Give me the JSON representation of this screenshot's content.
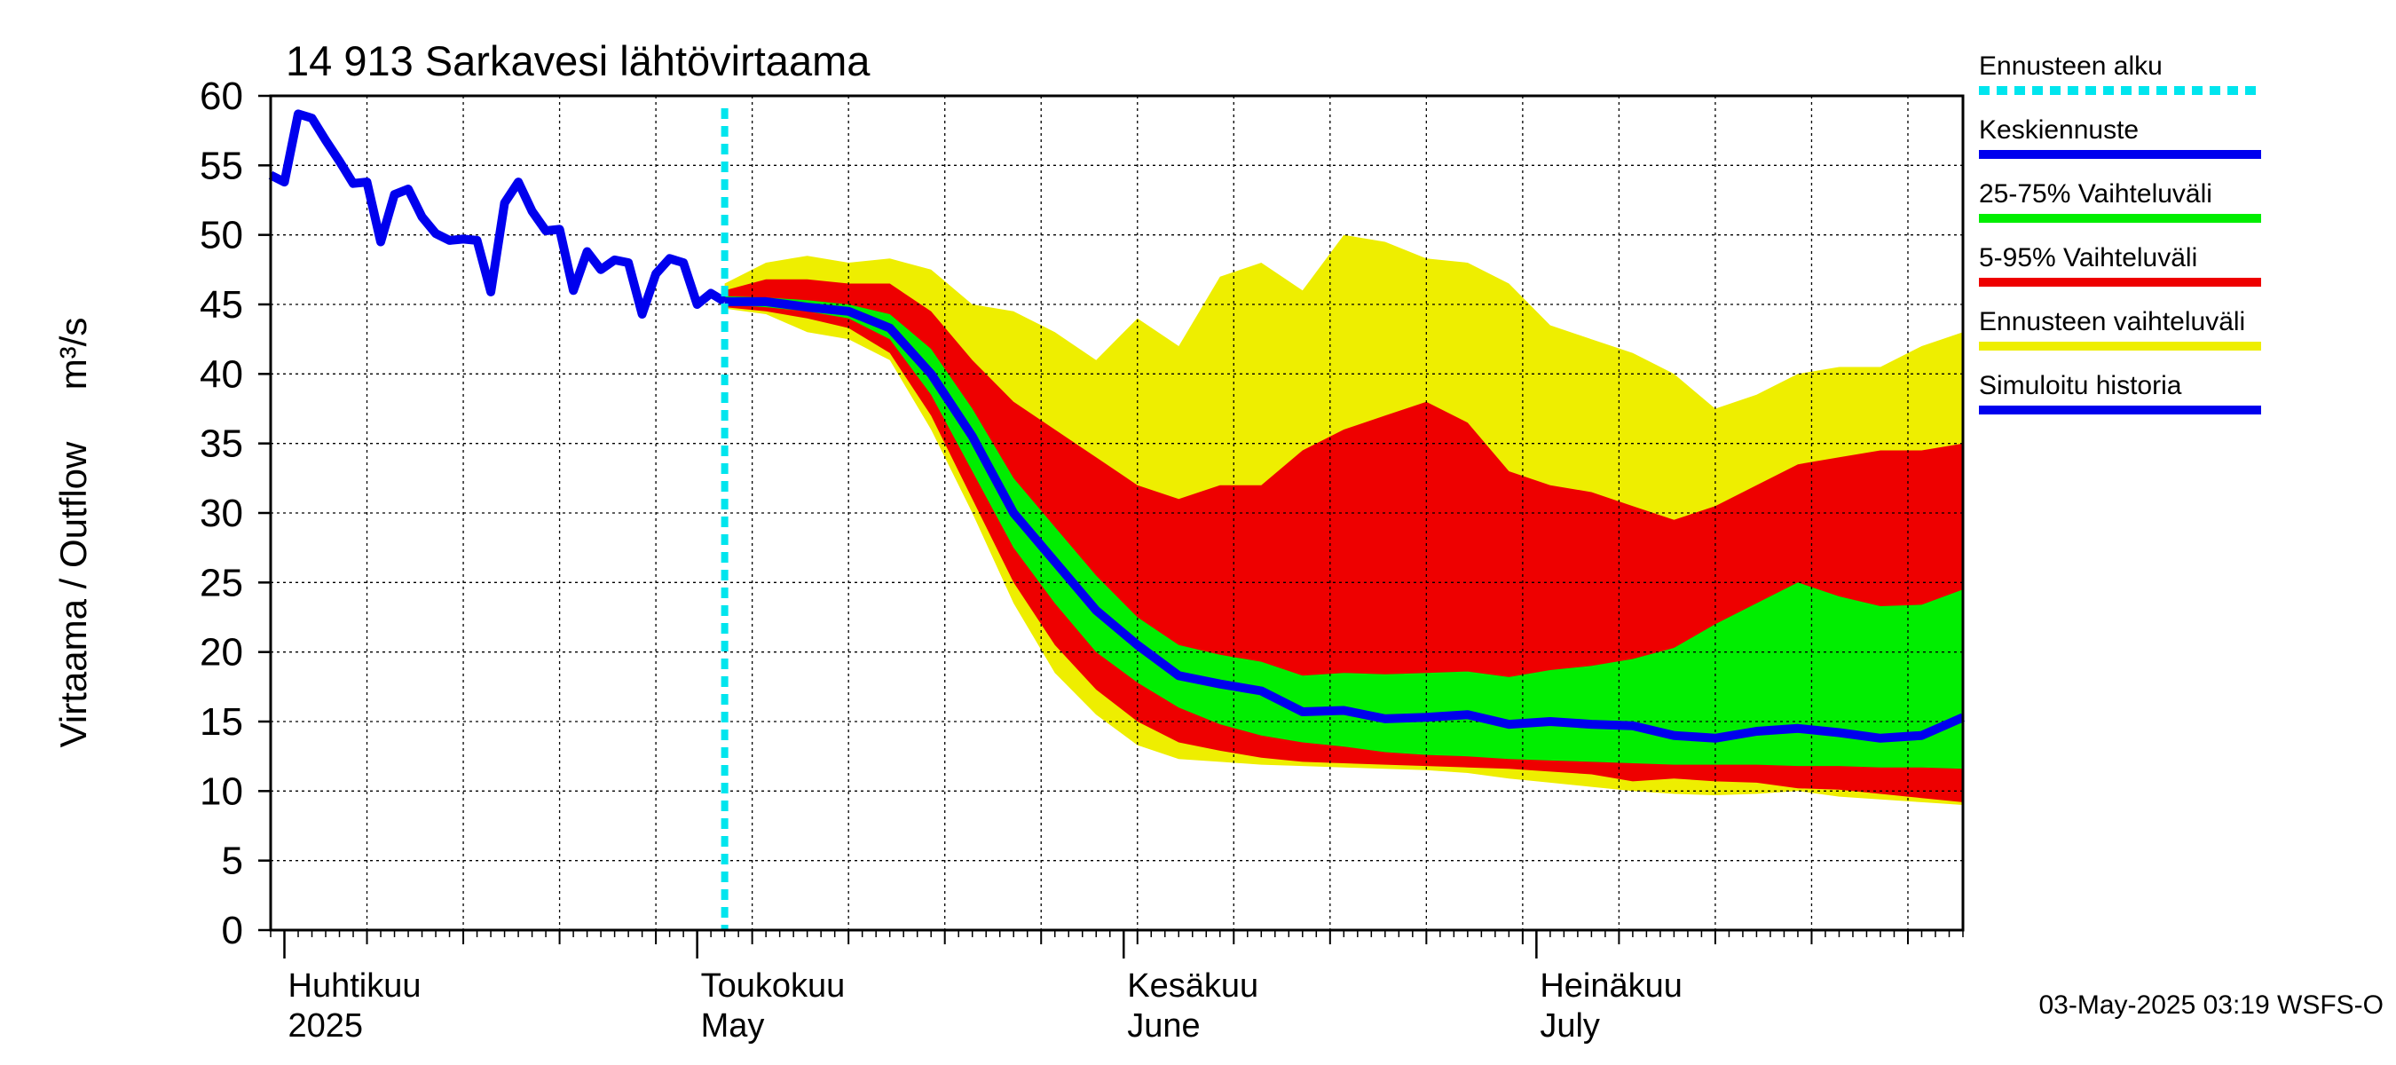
{
  "chart_data": {
    "type": "area",
    "title": "14 913 Sarkavesi lähtövirtaama",
    "ylabel": "Virtaama / Outflow     m³/s",
    "ylim": [
      0,
      60
    ],
    "yticks": [
      0,
      5,
      10,
      15,
      20,
      25,
      30,
      35,
      40,
      45,
      50,
      55,
      60
    ],
    "xlim": [
      "2025-03-31",
      "2025-08-01"
    ],
    "month_labels": [
      {
        "fi": "Huhtikuu",
        "en": "2025",
        "date": "2025-04-01"
      },
      {
        "fi": "Toukokuu",
        "en": "May",
        "date": "2025-05-01"
      },
      {
        "fi": "Kesäkuu",
        "en": "June",
        "date": "2025-06-01"
      },
      {
        "fi": "Heinäkuu",
        "en": "July",
        "date": "2025-07-01"
      }
    ],
    "forecast_start": "2025-05-03",
    "grid": true,
    "legend_position": "right",
    "series": [
      {
        "name": "Ennusteen alku",
        "color": "#00e5ee",
        "style": "dotted"
      },
      {
        "name": "Keskiennuste",
        "color": "#0000ee",
        "style": "line"
      },
      {
        "name": "25-75% Vaihteluväli",
        "color": "#00ee00",
        "style": "band"
      },
      {
        "name": "5-95% Vaihteluväli",
        "color": "#ee0000",
        "style": "band"
      },
      {
        "name": "Ennusteen vaihteluväli",
        "color": "#eeee00",
        "style": "band"
      },
      {
        "name": "Simuloitu historia",
        "color": "#0000ee",
        "style": "line"
      }
    ],
    "history": [
      [
        "2025-03-31",
        54.3
      ],
      [
        "2025-04-01",
        53.8
      ],
      [
        "2025-04-02",
        58.7
      ],
      [
        "2025-04-03",
        58.4
      ],
      [
        "2025-04-04",
        56.8
      ],
      [
        "2025-04-05",
        55.3
      ],
      [
        "2025-04-06",
        53.7
      ],
      [
        "2025-04-07",
        53.8
      ],
      [
        "2025-04-08",
        49.5
      ],
      [
        "2025-04-09",
        52.9
      ],
      [
        "2025-04-10",
        53.3
      ],
      [
        "2025-04-11",
        51.3
      ],
      [
        "2025-04-12",
        50.1
      ],
      [
        "2025-04-13",
        49.6
      ],
      [
        "2025-04-14",
        49.7
      ],
      [
        "2025-04-15",
        49.6
      ],
      [
        "2025-04-16",
        45.9
      ],
      [
        "2025-04-17",
        52.3
      ],
      [
        "2025-04-18",
        53.8
      ],
      [
        "2025-04-19",
        51.7
      ],
      [
        "2025-04-20",
        50.3
      ],
      [
        "2025-04-21",
        50.4
      ],
      [
        "2025-04-22",
        46.0
      ],
      [
        "2025-04-23",
        48.8
      ],
      [
        "2025-04-24",
        47.5
      ],
      [
        "2025-04-25",
        48.2
      ],
      [
        "2025-04-26",
        48.0
      ],
      [
        "2025-04-27",
        44.3
      ],
      [
        "2025-04-28",
        47.2
      ],
      [
        "2025-04-29",
        48.3
      ],
      [
        "2025-04-30",
        48.0
      ],
      [
        "2025-05-01",
        45.0
      ],
      [
        "2025-05-02",
        45.8
      ],
      [
        "2025-05-03",
        45.2
      ]
    ],
    "forecast": {
      "dates": [
        "2025-05-03",
        "2025-05-06",
        "2025-05-09",
        "2025-05-12",
        "2025-05-15",
        "2025-05-18",
        "2025-05-21",
        "2025-05-24",
        "2025-05-27",
        "2025-05-30",
        "2025-06-02",
        "2025-06-05",
        "2025-06-08",
        "2025-06-11",
        "2025-06-14",
        "2025-06-17",
        "2025-06-20",
        "2025-06-23",
        "2025-06-26",
        "2025-06-29",
        "2025-07-02",
        "2025-07-05",
        "2025-07-08",
        "2025-07-11",
        "2025-07-14",
        "2025-07-17",
        "2025-07-20",
        "2025-07-23",
        "2025-07-26",
        "2025-07-29",
        "2025-08-01"
      ],
      "median": [
        45.2,
        45.2,
        44.8,
        44.5,
        43.3,
        40.0,
        35.5,
        30.0,
        26.5,
        23.0,
        20.5,
        18.3,
        17.7,
        17.2,
        15.7,
        15.8,
        15.2,
        15.3,
        15.5,
        14.8,
        15.0,
        14.8,
        14.7,
        14.0,
        13.8,
        14.3,
        14.5,
        14.2,
        13.8,
        14.0,
        15.3
      ],
      "p25": [
        45.0,
        44.8,
        44.5,
        44.0,
        42.5,
        38.5,
        33.0,
        27.5,
        23.5,
        20.0,
        17.8,
        16.0,
        14.8,
        14.0,
        13.5,
        13.2,
        12.8,
        12.6,
        12.5,
        12.3,
        12.2,
        12.1,
        12.0,
        11.9,
        11.9,
        11.9,
        11.8,
        11.8,
        11.7,
        11.7,
        11.6
      ],
      "p75": [
        45.6,
        45.5,
        45.3,
        45.0,
        44.3,
        41.8,
        37.5,
        32.5,
        29.0,
        25.5,
        22.5,
        20.5,
        19.8,
        19.3,
        18.3,
        18.5,
        18.4,
        18.5,
        18.6,
        18.2,
        18.7,
        19.0,
        19.5,
        20.3,
        22.0,
        23.5,
        25.0,
        24.0,
        23.3,
        23.4,
        24.5
      ],
      "p5": [
        44.8,
        44.5,
        44.0,
        43.3,
        41.5,
        37.0,
        31.0,
        25.0,
        20.5,
        17.3,
        15.0,
        13.5,
        12.9,
        12.4,
        12.1,
        12.0,
        11.9,
        11.8,
        11.7,
        11.6,
        11.4,
        11.2,
        10.7,
        10.9,
        10.7,
        10.6,
        10.2,
        10.1,
        9.8,
        9.5,
        9.2
      ],
      "p95": [
        46.0,
        46.8,
        46.8,
        46.5,
        46.5,
        44.5,
        41.0,
        38.0,
        36.0,
        34.0,
        32.0,
        31.0,
        32.0,
        32.0,
        34.5,
        36.0,
        37.0,
        38.0,
        36.5,
        33.0,
        32.0,
        31.5,
        30.5,
        29.5,
        30.5,
        32.0,
        33.5,
        34.0,
        34.5,
        34.5,
        35.0
      ],
      "min": [
        44.7,
        44.3,
        43.0,
        42.5,
        41.0,
        36.0,
        30.0,
        23.5,
        18.5,
        15.5,
        13.3,
        12.3,
        12.1,
        11.9,
        11.8,
        11.7,
        11.6,
        11.5,
        11.3,
        10.9,
        10.6,
        10.3,
        10.0,
        9.8,
        9.7,
        9.8,
        10.0,
        9.6,
        9.4,
        9.2,
        9.0
      ],
      "max": [
        46.5,
        48.0,
        48.5,
        48.0,
        48.3,
        47.5,
        45.0,
        44.5,
        43.0,
        41.0,
        44.0,
        42.0,
        47.0,
        48.0,
        46.0,
        50.0,
        49.5,
        48.3,
        48.0,
        46.5,
        43.5,
        42.5,
        41.5,
        40.0,
        37.5,
        38.5,
        40.0,
        40.5,
        40.5,
        42.0,
        43.0
      ]
    },
    "footer": "03-May-2025 03:19 WSFS-O"
  }
}
